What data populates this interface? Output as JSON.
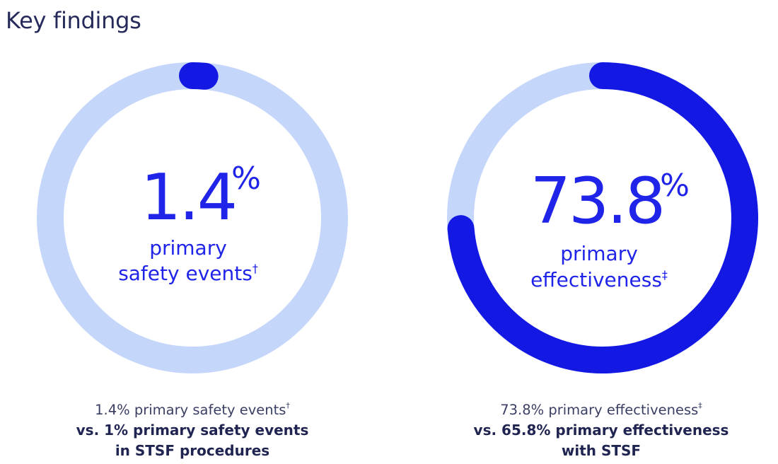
{
  "page_title": "Key findings",
  "colors": {
    "track": "#c5d6fb",
    "progress": "#1318e3",
    "big_text": "#1f24e8",
    "caption": "#252a5a"
  },
  "chart_data": [
    {
      "type": "pie",
      "variant": "donut-progress",
      "value": 1.4,
      "max": 100,
      "value_label": "1.4",
      "unit": "%",
      "label_line1": "primary",
      "label_line2": "safety events",
      "label_mark": "†",
      "caption_line1": "1.4% primary safety events",
      "caption_mark": "†",
      "caption_line2": "vs. 1% primary safety events",
      "caption_line3": "in STSF procedures"
    },
    {
      "type": "pie",
      "variant": "donut-progress",
      "value": 73.8,
      "max": 100,
      "value_label": "73.8",
      "unit": "%",
      "label_line1": "primary",
      "label_line2": "effectiveness",
      "label_mark": "‡",
      "caption_line1": "73.8% primary effectiveness",
      "caption_mark": "‡",
      "caption_line2": "vs. 65.8% primary effectiveness",
      "caption_line3": "with STSF"
    }
  ]
}
